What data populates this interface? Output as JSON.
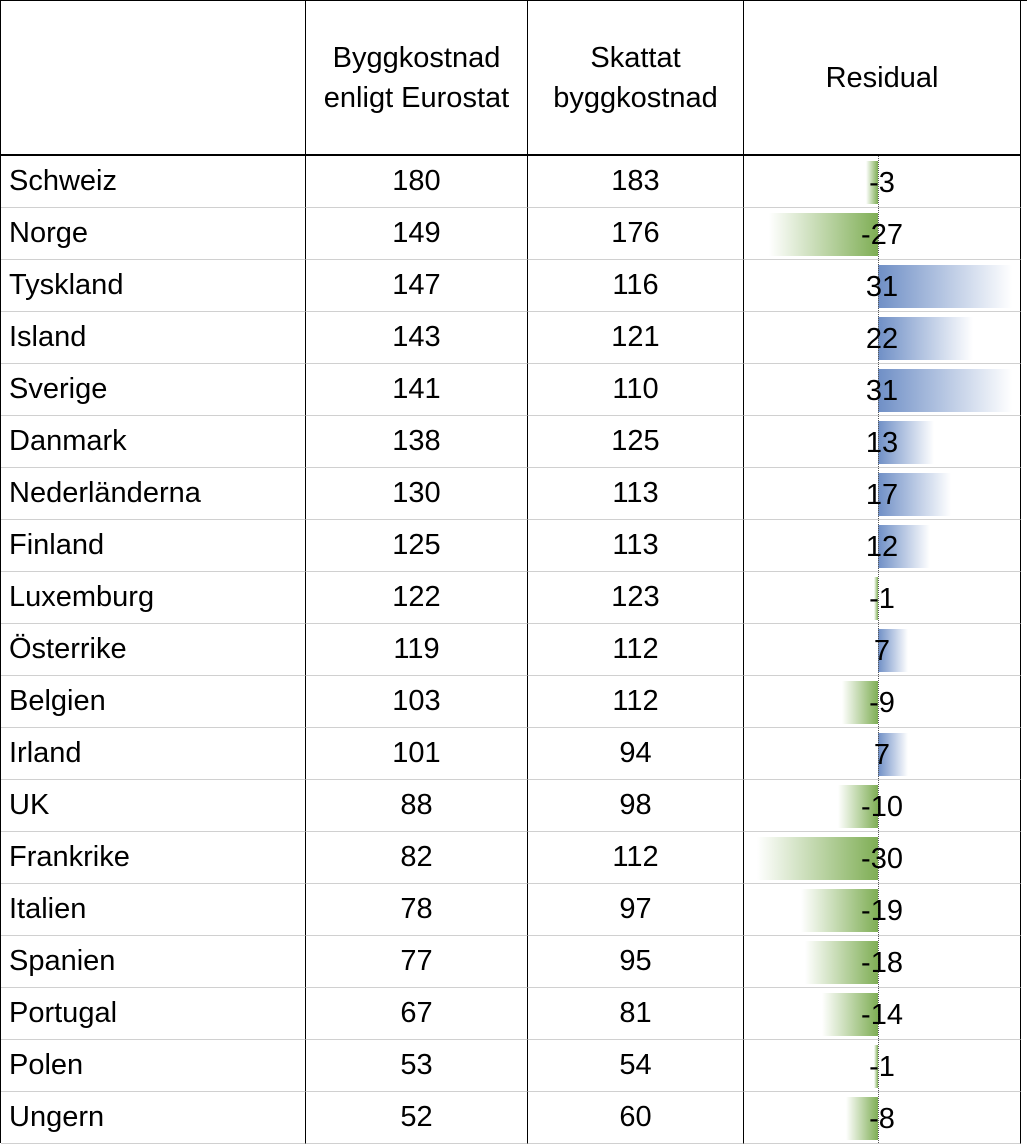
{
  "headers": {
    "country": "",
    "eurostat": "Byggkostnad enligt Eurostat",
    "estimated": "Skattat byggkostnad",
    "residual": "Residual"
  },
  "residual_scale_max": 31,
  "colors": {
    "negative_bar": "#7fae55",
    "positive_bar": "#6f8fc6"
  },
  "rows": [
    {
      "country": "Schweiz",
      "eurostat": "180",
      "estimated": "183",
      "residual": "-3",
      "residual_value": -3
    },
    {
      "country": "Norge",
      "eurostat": "149",
      "estimated": "176",
      "residual": "-27",
      "residual_value": -27
    },
    {
      "country": "Tyskland",
      "eurostat": "147",
      "estimated": "116",
      "residual": "31",
      "residual_value": 31
    },
    {
      "country": "Island",
      "eurostat": "143",
      "estimated": "121",
      "residual": "22",
      "residual_value": 22
    },
    {
      "country": "Sverige",
      "eurostat": "141",
      "estimated": "110",
      "residual": "31",
      "residual_value": 31
    },
    {
      "country": "Danmark",
      "eurostat": "138",
      "estimated": "125",
      "residual": "13",
      "residual_value": 13
    },
    {
      "country": "Nederländerna",
      "eurostat": "130",
      "estimated": "113",
      "residual": "17",
      "residual_value": 17
    },
    {
      "country": "Finland",
      "eurostat": "125",
      "estimated": "113",
      "residual": "12",
      "residual_value": 12
    },
    {
      "country": "Luxemburg",
      "eurostat": "122",
      "estimated": "123",
      "residual": "-1",
      "residual_value": -1
    },
    {
      "country": "Österrike",
      "eurostat": "119",
      "estimated": "112",
      "residual": "7",
      "residual_value": 7
    },
    {
      "country": "Belgien",
      "eurostat": "103",
      "estimated": "112",
      "residual": "-9",
      "residual_value": -9
    },
    {
      "country": "Irland",
      "eurostat": "101",
      "estimated": "94",
      "residual": "7",
      "residual_value": 7
    },
    {
      "country": "UK",
      "eurostat": "88",
      "estimated": "98",
      "residual": "-10",
      "residual_value": -10
    },
    {
      "country": "Frankrike",
      "eurostat": "82",
      "estimated": "112",
      "residual": "-30",
      "residual_value": -30
    },
    {
      "country": "Italien",
      "eurostat": "78",
      "estimated": "97",
      "residual": "-19",
      "residual_value": -19
    },
    {
      "country": "Spanien",
      "eurostat": "77",
      "estimated": "95",
      "residual": "-18",
      "residual_value": -18
    },
    {
      "country": "Portugal",
      "eurostat": "67",
      "estimated": "81",
      "residual": "-14",
      "residual_value": -14
    },
    {
      "country": "Polen",
      "eurostat": "53",
      "estimated": "54",
      "residual": "-1",
      "residual_value": -1
    },
    {
      "country": "Ungern",
      "eurostat": "52",
      "estimated": "60",
      "residual": "-8",
      "residual_value": -8
    }
  ]
}
